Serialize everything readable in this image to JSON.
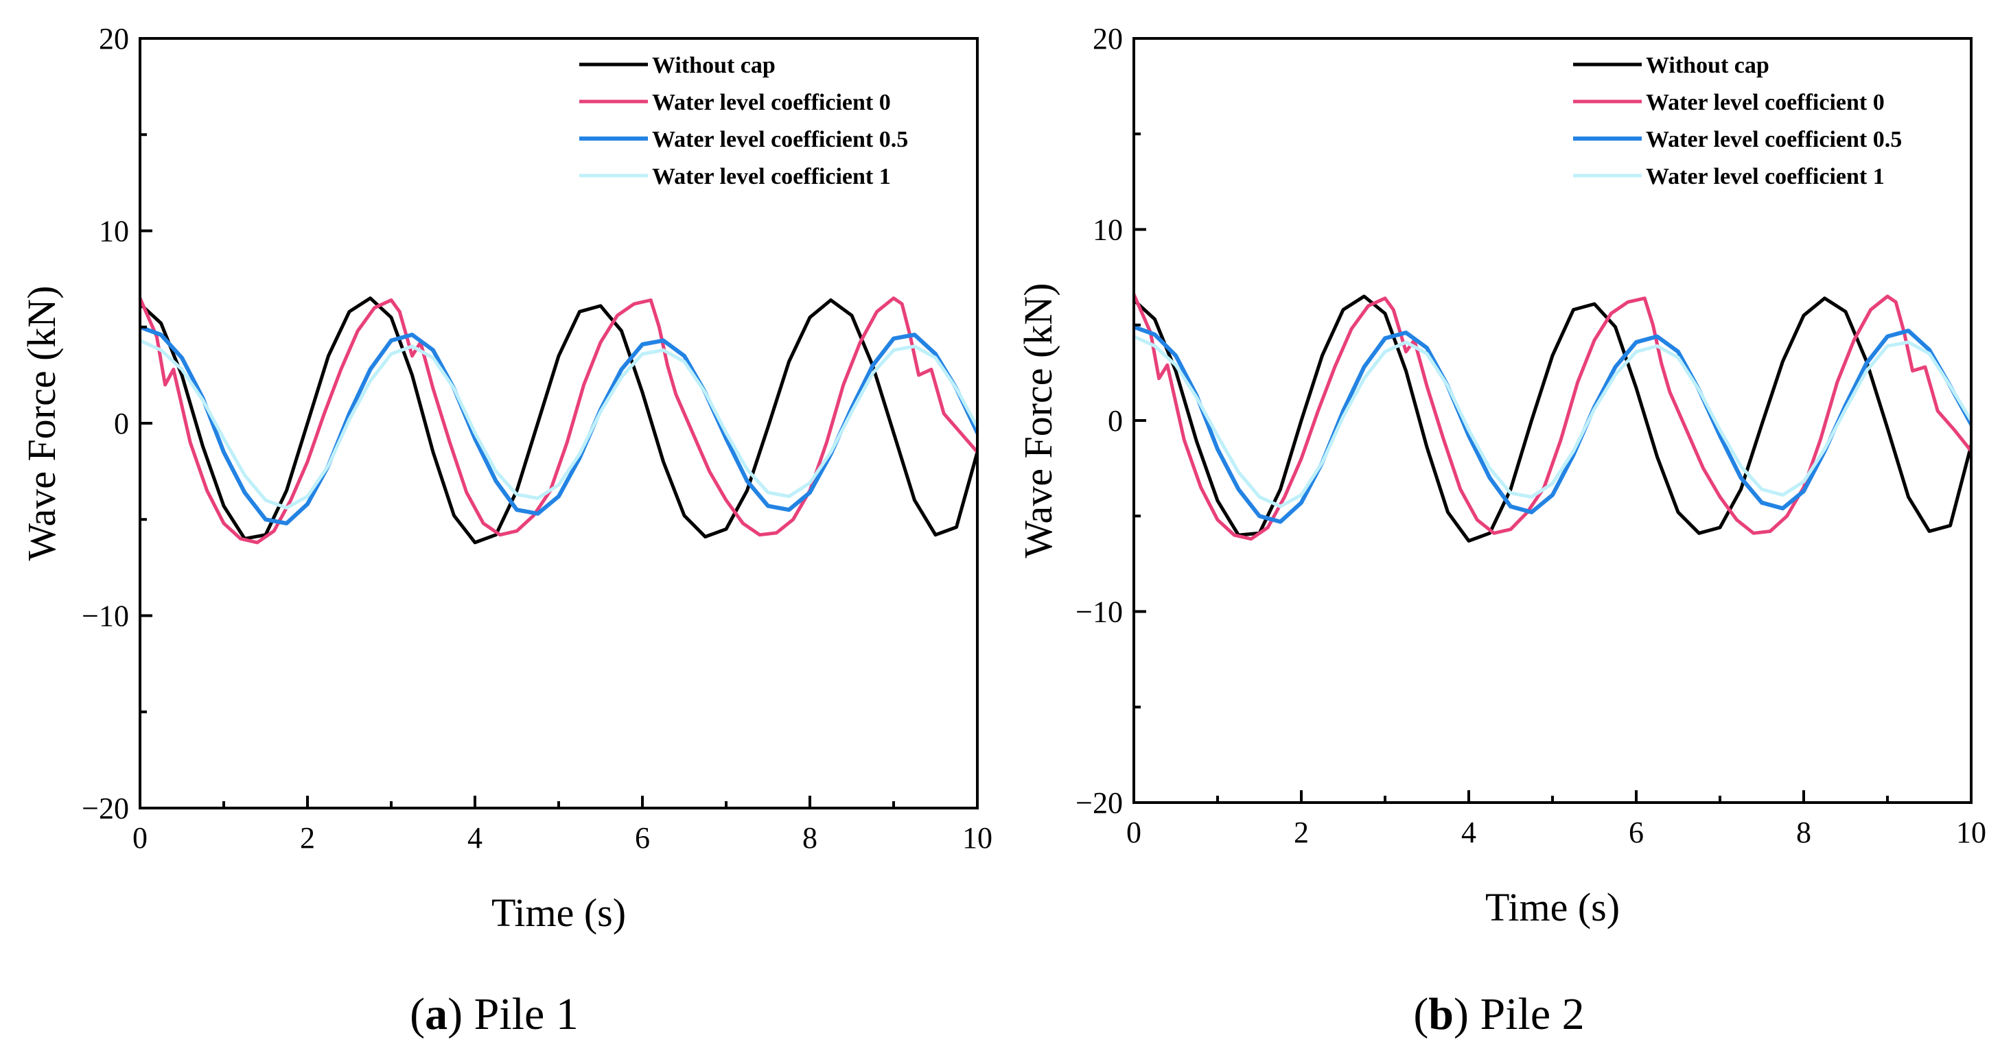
{
  "captions": [
    {
      "letter": "a",
      "text": "Pile 1"
    },
    {
      "letter": "b",
      "text": "Pile 2"
    }
  ],
  "colors": {
    "without_cap": "#000000",
    "wlc_0": "#e8407a",
    "wlc_05": "#2383e3",
    "wlc_1": "#bff0fa"
  },
  "chart_data": [
    {
      "type": "line",
      "title": "",
      "xlabel": "Time (s)",
      "ylabel": "Wave Force (kN)",
      "xlim": [
        0,
        10
      ],
      "ylim": [
        -20,
        20
      ],
      "xticks": [
        0,
        2,
        4,
        6,
        8,
        10
      ],
      "yticks": [
        -20,
        -10,
        0,
        10,
        20
      ],
      "legend_position": "top-right",
      "series": [
        {
          "name": "Without cap",
          "color": "#000000",
          "x": [
            0,
            0.25,
            0.5,
            0.75,
            1,
            1.25,
            1.5,
            1.75,
            2,
            2.25,
            2.5,
            2.75,
            3,
            3.25,
            3.5,
            3.75,
            4,
            4.25,
            4.5,
            4.75,
            5,
            5.25,
            5.5,
            5.75,
            6,
            6.25,
            6.5,
            6.75,
            7,
            7.25,
            7.5,
            7.75,
            8,
            8.25,
            8.5,
            8.75,
            9,
            9.25,
            9.5,
            9.75,
            10
          ],
          "y": [
            6.2,
            5.2,
            2.5,
            -1.2,
            -4.3,
            -6.0,
            -5.8,
            -3.5,
            0,
            3.5,
            5.8,
            6.5,
            5.5,
            2.5,
            -1.5,
            -4.8,
            -6.2,
            -5.8,
            -3.5,
            0,
            3.5,
            5.8,
            6.1,
            4.8,
            1.6,
            -2,
            -4.8,
            -5.9,
            -5.5,
            -3.5,
            -0.2,
            3.2,
            5.5,
            6.4,
            5.6,
            3,
            -0.5,
            -4,
            -5.8,
            -5.4,
            -1.5
          ]
        },
        {
          "name": "Water level coefficient 0",
          "color": "#e8407a",
          "x": [
            0,
            0.2,
            0.3,
            0.4,
            0.6,
            0.8,
            1,
            1.2,
            1.4,
            1.6,
            1.8,
            2,
            2.2,
            2.4,
            2.6,
            2.8,
            3.0,
            3.1,
            3.25,
            3.35,
            3.5,
            3.7,
            3.9,
            4.1,
            4.3,
            4.5,
            4.7,
            4.9,
            5.1,
            5.3,
            5.5,
            5.7,
            5.9,
            6.1,
            6.2,
            6.3,
            6.4,
            6.6,
            6.8,
            7,
            7.2,
            7.4,
            7.6,
            7.8,
            8,
            8.2,
            8.4,
            8.6,
            8.8,
            9,
            9.1,
            9.2,
            9.3,
            9.45,
            9.6,
            9.8,
            10
          ],
          "y": [
            6.5,
            4.5,
            2.0,
            2.8,
            -1,
            -3.5,
            -5.2,
            -6.0,
            -6.2,
            -5.6,
            -4,
            -2,
            0.5,
            2.8,
            4.8,
            6,
            6.4,
            5.8,
            3.5,
            4.2,
            1.8,
            -1,
            -3.6,
            -5.2,
            -5.8,
            -5.6,
            -4.8,
            -3.5,
            -1,
            2,
            4.2,
            5.6,
            6.2,
            6.4,
            5,
            3,
            1.5,
            -0.5,
            -2.5,
            -4,
            -5.2,
            -5.8,
            -5.7,
            -5,
            -3.5,
            -1,
            2,
            4.2,
            5.8,
            6.5,
            6.2,
            4.5,
            2.5,
            2.8,
            0.5,
            -0.5,
            -1.5
          ]
        },
        {
          "name": "Water level coefficient 0.5",
          "color": "#2383e3",
          "x": [
            0,
            0.25,
            0.5,
            0.75,
            1,
            1.25,
            1.5,
            1.75,
            2,
            2.25,
            2.5,
            2.75,
            3,
            3.25,
            3.5,
            3.75,
            4,
            4.25,
            4.5,
            4.75,
            5,
            5.25,
            5.5,
            5.75,
            6,
            6.25,
            6.5,
            6.75,
            7,
            7.25,
            7.5,
            7.75,
            8,
            8.25,
            8.5,
            8.75,
            9,
            9.25,
            9.5,
            9.75,
            10
          ],
          "y": [
            5,
            4.6,
            3.4,
            1.3,
            -1.5,
            -3.6,
            -5,
            -5.2,
            -4.2,
            -2.2,
            0.5,
            2.8,
            4.3,
            4.6,
            3.8,
            1.8,
            -0.8,
            -3,
            -4.5,
            -4.7,
            -3.8,
            -1.8,
            0.7,
            2.8,
            4.1,
            4.3,
            3.5,
            1.6,
            -0.8,
            -3,
            -4.3,
            -4.5,
            -3.6,
            -1.6,
            0.8,
            3,
            4.4,
            4.6,
            3.6,
            1.8,
            -0.5
          ]
        },
        {
          "name": "Water level coefficient 1",
          "color": "#bff0fa",
          "x": [
            0,
            0.25,
            0.5,
            0.75,
            1,
            1.25,
            1.5,
            1.75,
            2,
            2.25,
            2.5,
            2.75,
            3,
            3.25,
            3.5,
            3.75,
            4,
            4.25,
            4.5,
            4.75,
            5,
            5.25,
            5.5,
            5.75,
            6,
            6.25,
            6.5,
            6.75,
            7,
            7.25,
            7.5,
            7.75,
            8,
            8.25,
            8.5,
            8.75,
            9,
            9.25,
            9.5,
            9.75,
            10
          ],
          "y": [
            4.3,
            3.8,
            2.8,
            1.2,
            -0.8,
            -2.7,
            -4,
            -4.4,
            -3.8,
            -2.2,
            0.2,
            2.2,
            3.6,
            4,
            3.4,
            1.8,
            -0.5,
            -2.5,
            -3.7,
            -3.9,
            -3.2,
            -1.6,
            0.6,
            2.4,
            3.6,
            3.8,
            3.2,
            1.6,
            -0.5,
            -2.4,
            -3.6,
            -3.8,
            -3.1,
            -1.5,
            0.6,
            2.6,
            3.8,
            4,
            3.4,
            1.8,
            -0.2
          ]
        }
      ]
    },
    {
      "type": "line",
      "title": "",
      "xlabel": "Time (s)",
      "ylabel": "Wave Force (kN)",
      "xlim": [
        0,
        10
      ],
      "ylim": [
        -20,
        20
      ],
      "xticks": [
        0,
        2,
        4,
        6,
        8,
        10
      ],
      "yticks": [
        -20,
        -10,
        0,
        10,
        20
      ],
      "legend_position": "top-right",
      "series": [
        {
          "name": "Without cap",
          "color": "#000000",
          "x": [
            0,
            0.25,
            0.5,
            0.75,
            1,
            1.25,
            1.5,
            1.75,
            2,
            2.25,
            2.5,
            2.75,
            3,
            3.25,
            3.5,
            3.75,
            4,
            4.25,
            4.5,
            4.75,
            5,
            5.25,
            5.5,
            5.75,
            6,
            6.25,
            6.5,
            6.75,
            7,
            7.25,
            7.5,
            7.75,
            8,
            8.25,
            8.5,
            8.75,
            9,
            9.25,
            9.5,
            9.75,
            10
          ],
          "y": [
            6.3,
            5.3,
            2.6,
            -1.1,
            -4.2,
            -6.0,
            -5.9,
            -3.6,
            0,
            3.4,
            5.8,
            6.5,
            5.6,
            2.6,
            -1.4,
            -4.8,
            -6.3,
            -5.9,
            -3.6,
            0,
            3.4,
            5.8,
            6.1,
            4.9,
            1.7,
            -1.9,
            -4.8,
            -5.9,
            -5.6,
            -3.6,
            -0.2,
            3.1,
            5.5,
            6.4,
            5.7,
            3.1,
            -0.4,
            -4,
            -5.8,
            -5.5,
            -1.3
          ]
        },
        {
          "name": "Water level coefficient 0",
          "color": "#e8407a",
          "x": [
            0,
            0.2,
            0.3,
            0.4,
            0.6,
            0.8,
            1,
            1.2,
            1.4,
            1.6,
            1.8,
            2,
            2.2,
            2.4,
            2.6,
            2.8,
            3.0,
            3.1,
            3.25,
            3.35,
            3.5,
            3.7,
            3.9,
            4.1,
            4.3,
            4.5,
            4.7,
            4.9,
            5.1,
            5.3,
            5.5,
            5.7,
            5.9,
            6.1,
            6.2,
            6.3,
            6.4,
            6.6,
            6.8,
            7,
            7.2,
            7.4,
            7.6,
            7.8,
            8,
            8.2,
            8.4,
            8.6,
            8.8,
            9,
            9.1,
            9.2,
            9.3,
            9.45,
            9.6,
            9.8,
            10
          ],
          "y": [
            6.6,
            4.6,
            2.2,
            2.9,
            -1,
            -3.5,
            -5.2,
            -6.0,
            -6.2,
            -5.6,
            -4,
            -2,
            0.5,
            2.8,
            4.8,
            6,
            6.4,
            5.8,
            3.6,
            4.2,
            1.8,
            -1,
            -3.6,
            -5.2,
            -5.9,
            -5.7,
            -4.8,
            -3.5,
            -1,
            2,
            4.2,
            5.6,
            6.2,
            6.4,
            5,
            3,
            1.5,
            -0.5,
            -2.5,
            -4,
            -5.2,
            -5.9,
            -5.8,
            -5,
            -3.5,
            -1,
            2,
            4.2,
            5.8,
            6.5,
            6.2,
            4.6,
            2.6,
            2.8,
            0.5,
            -0.5,
            -1.6
          ]
        },
        {
          "name": "Water level coefficient 0.5",
          "color": "#2383e3",
          "x": [
            0,
            0.25,
            0.5,
            0.75,
            1,
            1.25,
            1.5,
            1.75,
            2,
            2.25,
            2.5,
            2.75,
            3,
            3.25,
            3.5,
            3.75,
            4,
            4.25,
            4.5,
            4.75,
            5,
            5.25,
            5.5,
            5.75,
            6,
            6.25,
            6.5,
            6.75,
            7,
            7.25,
            7.5,
            7.75,
            8,
            8.25,
            8.5,
            8.75,
            9,
            9.25,
            9.5,
            9.75,
            10
          ],
          "y": [
            4.9,
            4.5,
            3.4,
            1.3,
            -1.5,
            -3.6,
            -5,
            -5.3,
            -4.3,
            -2.2,
            0.5,
            2.8,
            4.3,
            4.6,
            3.8,
            1.8,
            -0.8,
            -3,
            -4.5,
            -4.8,
            -3.9,
            -1.8,
            0.7,
            2.8,
            4.1,
            4.4,
            3.6,
            1.6,
            -0.8,
            -3,
            -4.3,
            -4.6,
            -3.7,
            -1.6,
            0.8,
            3,
            4.4,
            4.7,
            3.7,
            1.8,
            -0.2
          ]
        },
        {
          "name": "Water level coefficient 1",
          "color": "#bff0fa",
          "x": [
            0,
            0.25,
            0.5,
            0.75,
            1,
            1.25,
            1.5,
            1.75,
            2,
            2.25,
            2.5,
            2.75,
            3,
            3.25,
            3.5,
            3.75,
            4,
            4.25,
            4.5,
            4.75,
            5,
            5.25,
            5.5,
            5.75,
            6,
            6.25,
            6.5,
            6.75,
            7,
            7.25,
            7.5,
            7.75,
            8,
            8.25,
            8.5,
            8.75,
            9,
            9.25,
            9.5,
            9.75,
            10
          ],
          "y": [
            4.4,
            3.9,
            2.9,
            1.2,
            -0.8,
            -2.7,
            -4,
            -4.5,
            -3.9,
            -2.2,
            0.2,
            2.2,
            3.6,
            4.1,
            3.5,
            1.8,
            -0.5,
            -2.5,
            -3.8,
            -4,
            -3.3,
            -1.6,
            0.6,
            2.4,
            3.6,
            3.9,
            3.3,
            1.6,
            -0.5,
            -2.4,
            -3.6,
            -3.9,
            -3.2,
            -1.5,
            0.6,
            2.6,
            3.9,
            4.1,
            3.5,
            1.8,
            0
          ]
        }
      ]
    }
  ]
}
